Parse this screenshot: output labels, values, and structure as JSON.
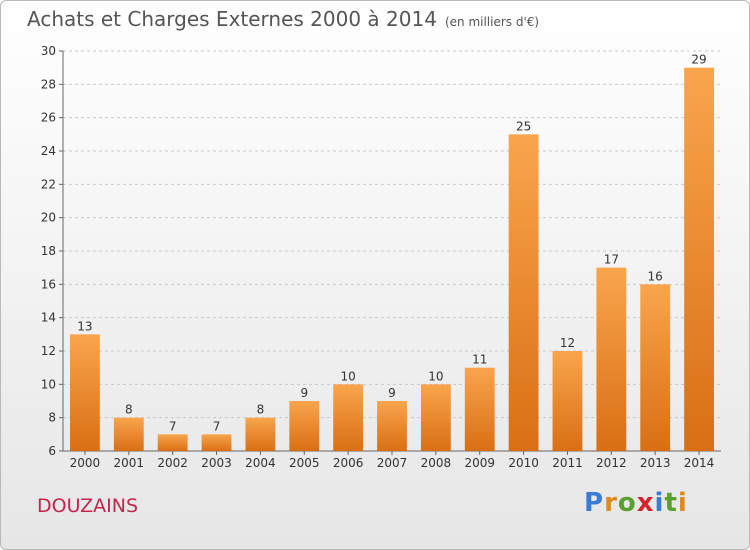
{
  "header": {
    "title": "Achats et Charges Externes 2000 à 2014",
    "subtitle": "(en milliers d'€)"
  },
  "footer": {
    "commune": "DOUZAINS",
    "brand_letters": [
      "P",
      "r",
      "o",
      "x",
      "i",
      "t",
      "i"
    ],
    "brand_colors": [
      "#3a7bd5",
      "#e08a1c",
      "#5aa02c",
      "#d4252c",
      "#3a7bd5",
      "#5aa02c",
      "#e08a1c"
    ]
  },
  "chart_data": {
    "type": "bar",
    "title": "Achats et Charges Externes 2000 à 2014",
    "subtitle": "(en milliers d'€)",
    "categories": [
      "2000",
      "2001",
      "2002",
      "2003",
      "2004",
      "2005",
      "2006",
      "2007",
      "2008",
      "2009",
      "2010",
      "2011",
      "2012",
      "2013",
      "2014"
    ],
    "values": [
      13,
      8,
      7,
      7,
      8,
      9,
      10,
      9,
      10,
      11,
      25,
      12,
      17,
      16,
      29
    ],
    "ylim": [
      6,
      30
    ],
    "yticks": [
      6,
      8,
      10,
      12,
      14,
      16,
      18,
      20,
      22,
      24,
      26,
      28,
      30
    ],
    "grid": true,
    "bar_color_light": "#f9a54d",
    "bar_color_dark": "#d96f14"
  }
}
